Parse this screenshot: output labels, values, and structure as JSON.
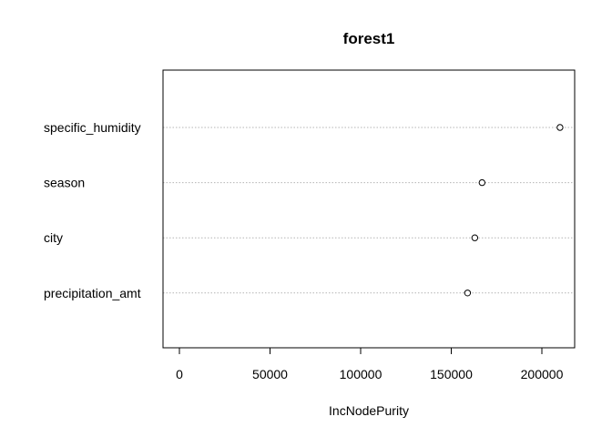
{
  "chart_data": {
    "type": "scatter",
    "title": "forest1",
    "xlabel": "IncNodePurity",
    "ylabel": "",
    "categories": [
      "specific_humidity",
      "season",
      "city",
      "precipitation_amt"
    ],
    "values": [
      210000,
      167000,
      163000,
      159000
    ],
    "xlim": [
      0,
      210000
    ],
    "xticks": [
      0,
      50000,
      100000,
      150000,
      200000
    ],
    "xtick_labels": [
      "0",
      "50000",
      "100000",
      "150000",
      "200000"
    ],
    "grid": "horizontal-dotted",
    "legend": "none"
  }
}
